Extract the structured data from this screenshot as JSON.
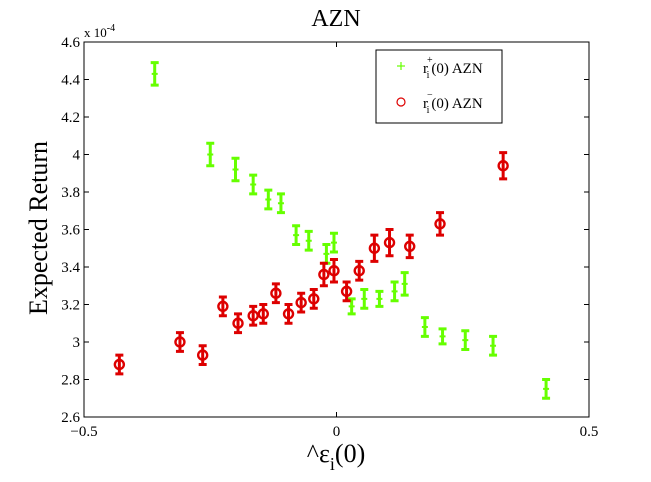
{
  "chart_data": {
    "type": "scatter",
    "title": "AZN",
    "xlabel": "^ε",
    "xlabel_sub": "i",
    "xlabel_tail": "(0)",
    "ylabel": "Expected Return",
    "y_scale_label": "x 10",
    "y_scale_exponent": "-4",
    "xlim": [
      -0.5,
      0.5
    ],
    "ylim": [
      2.6,
      4.6
    ],
    "xticks": [
      {
        "value": -0.5,
        "label": "−0.5"
      },
      {
        "value": 0,
        "label": "0"
      },
      {
        "value": 0.5,
        "label": "0.5"
      }
    ],
    "yticks": [
      {
        "value": 2.6,
        "label": "2.6"
      },
      {
        "value": 2.8,
        "label": "2.8"
      },
      {
        "value": 3.0,
        "label": "3"
      },
      {
        "value": 3.2,
        "label": "3.2"
      },
      {
        "value": 3.4,
        "label": "3.4"
      },
      {
        "value": 3.6,
        "label": "3.6"
      },
      {
        "value": 3.8,
        "label": "3.8"
      },
      {
        "value": 4.0,
        "label": "4"
      },
      {
        "value": 4.2,
        "label": "4.2"
      },
      {
        "value": 4.4,
        "label": "4.4"
      },
      {
        "value": 4.6,
        "label": "4.6"
      }
    ],
    "grid": false,
    "legend_position": "top-right",
    "series": [
      {
        "name": "r_i^+(0)  AZN",
        "legend_base": "r",
        "legend_sub": "i",
        "legend_sup": "+",
        "legend_tail": "(0)  AZN",
        "marker": "plus",
        "color": "#66ff00",
        "points": [
          {
            "x": -0.36,
            "y": 4.43,
            "err": 0.06
          },
          {
            "x": -0.25,
            "y": 4.0,
            "err": 0.06
          },
          {
            "x": -0.2,
            "y": 3.92,
            "err": 0.06
          },
          {
            "x": -0.165,
            "y": 3.84,
            "err": 0.05
          },
          {
            "x": -0.135,
            "y": 3.76,
            "err": 0.05
          },
          {
            "x": -0.11,
            "y": 3.74,
            "err": 0.05
          },
          {
            "x": -0.08,
            "y": 3.57,
            "err": 0.05
          },
          {
            "x": -0.055,
            "y": 3.54,
            "err": 0.05
          },
          {
            "x": -0.02,
            "y": 3.47,
            "err": 0.05
          },
          {
            "x": -0.005,
            "y": 3.53,
            "err": 0.05
          },
          {
            "x": 0.03,
            "y": 3.19,
            "err": 0.04
          },
          {
            "x": 0.055,
            "y": 3.23,
            "err": 0.05
          },
          {
            "x": 0.085,
            "y": 3.23,
            "err": 0.04
          },
          {
            "x": 0.115,
            "y": 3.27,
            "err": 0.05
          },
          {
            "x": 0.135,
            "y": 3.31,
            "err": 0.06
          },
          {
            "x": 0.175,
            "y": 3.08,
            "err": 0.05
          },
          {
            "x": 0.21,
            "y": 3.03,
            "err": 0.04
          },
          {
            "x": 0.255,
            "y": 3.01,
            "err": 0.05
          },
          {
            "x": 0.31,
            "y": 2.98,
            "err": 0.05
          },
          {
            "x": 0.415,
            "y": 2.75,
            "err": 0.05
          }
        ]
      },
      {
        "name": "r_i^-(0)  AZN",
        "legend_base": "r",
        "legend_sub": "i",
        "legend_sup": "−",
        "legend_tail": "(0)  AZN",
        "marker": "circle",
        "color": "#dd0000",
        "points": [
          {
            "x": -0.43,
            "y": 2.88,
            "err": 0.05
          },
          {
            "x": -0.31,
            "y": 3.0,
            "err": 0.05
          },
          {
            "x": -0.265,
            "y": 2.93,
            "err": 0.05
          },
          {
            "x": -0.225,
            "y": 3.19,
            "err": 0.05
          },
          {
            "x": -0.195,
            "y": 3.1,
            "err": 0.05
          },
          {
            "x": -0.165,
            "y": 3.14,
            "err": 0.05
          },
          {
            "x": -0.145,
            "y": 3.15,
            "err": 0.05
          },
          {
            "x": -0.12,
            "y": 3.26,
            "err": 0.05
          },
          {
            "x": -0.095,
            "y": 3.15,
            "err": 0.05
          },
          {
            "x": -0.07,
            "y": 3.21,
            "err": 0.05
          },
          {
            "x": -0.045,
            "y": 3.23,
            "err": 0.05
          },
          {
            "x": -0.025,
            "y": 3.36,
            "err": 0.06
          },
          {
            "x": -0.005,
            "y": 3.38,
            "err": 0.06
          },
          {
            "x": 0.02,
            "y": 3.27,
            "err": 0.05
          },
          {
            "x": 0.045,
            "y": 3.38,
            "err": 0.05
          },
          {
            "x": 0.075,
            "y": 3.5,
            "err": 0.07
          },
          {
            "x": 0.105,
            "y": 3.53,
            "err": 0.07
          },
          {
            "x": 0.145,
            "y": 3.51,
            "err": 0.06
          },
          {
            "x": 0.205,
            "y": 3.63,
            "err": 0.06
          },
          {
            "x": 0.33,
            "y": 3.94,
            "err": 0.07
          }
        ]
      }
    ]
  }
}
